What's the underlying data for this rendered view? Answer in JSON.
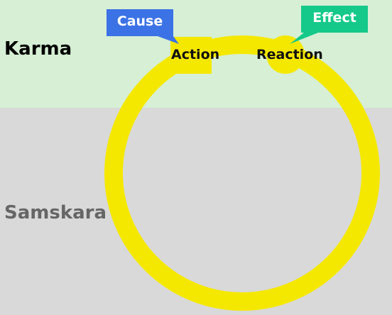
{
  "zones": {
    "top": {
      "label": "Karma",
      "background": "#d6efd5",
      "text_color": "#000000"
    },
    "bottom": {
      "label": "Samskara",
      "background": "#d9d9d9",
      "text_color": "#666666"
    }
  },
  "cycle": {
    "ring_color": "#f5e800",
    "nodes": [
      {
        "label": "Action",
        "shape": "square"
      },
      {
        "label": "Reaction",
        "shape": "circle"
      }
    ]
  },
  "callouts": [
    {
      "label": "Cause",
      "color": "#3b72e6",
      "points_to": "Action"
    },
    {
      "label": "Effect",
      "color": "#15c98a",
      "points_to": "Reaction"
    }
  ]
}
